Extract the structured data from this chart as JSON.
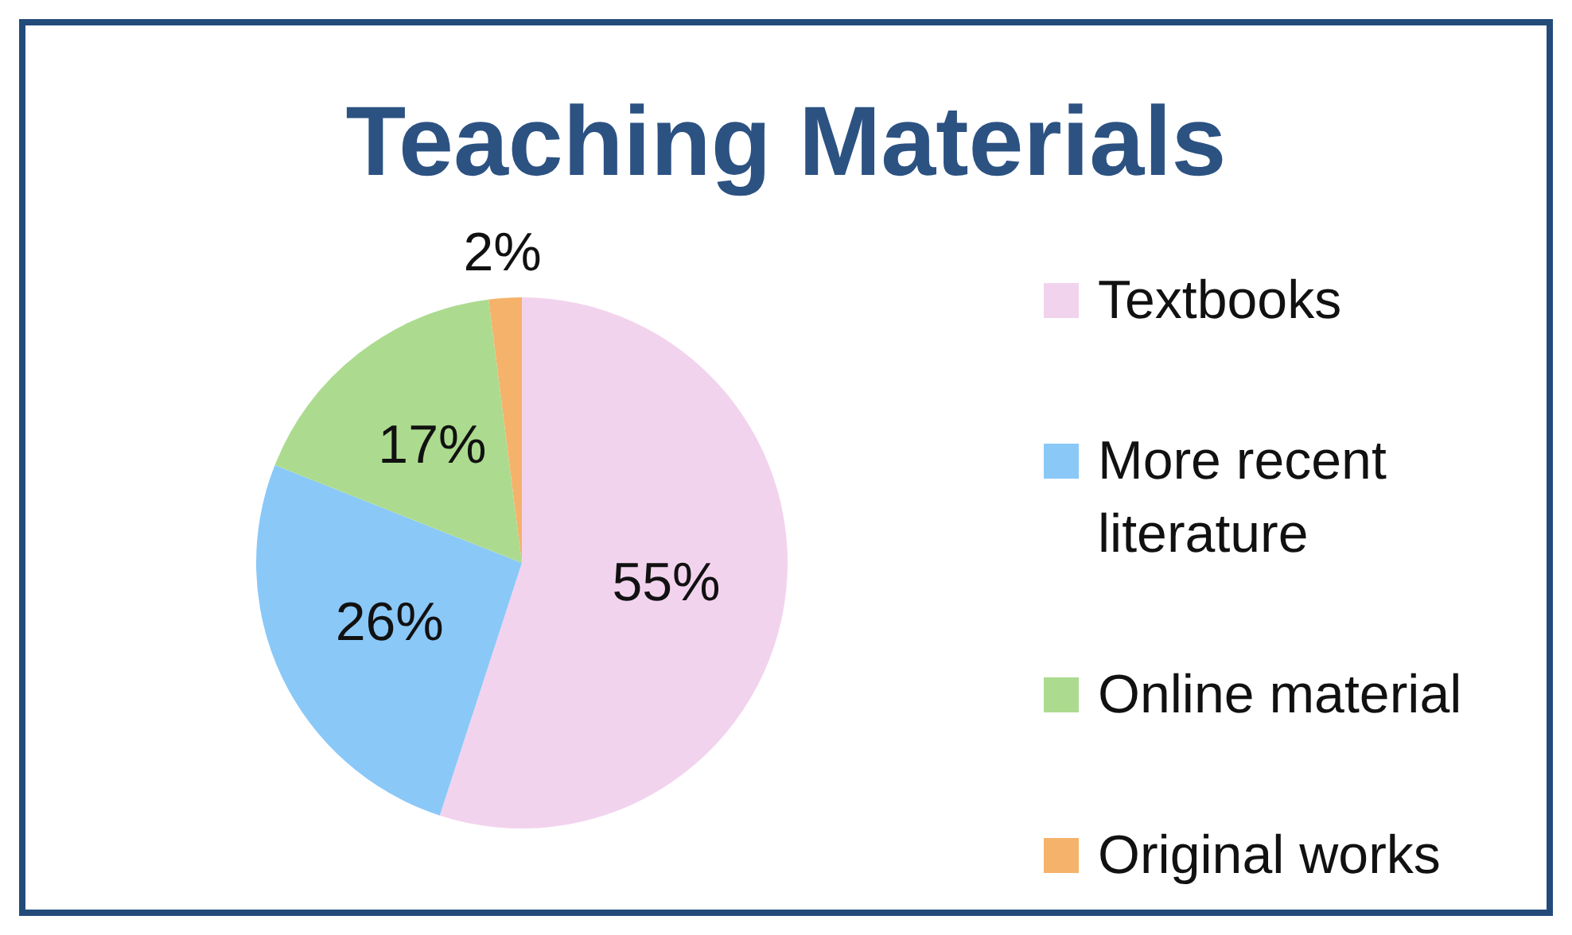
{
  "chart_data": {
    "type": "pie",
    "title": "Teaching Materials",
    "categories": [
      "Textbooks",
      "More recent literature",
      "Online material",
      "Original works"
    ],
    "values": [
      55,
      26,
      17,
      2
    ],
    "value_labels": [
      "55%",
      "26%",
      "17%",
      "2%"
    ],
    "colors": [
      "#f2d3ee",
      "#8ac8f8",
      "#acdb8f",
      "#f5b26b"
    ],
    "legend": "right"
  }
}
